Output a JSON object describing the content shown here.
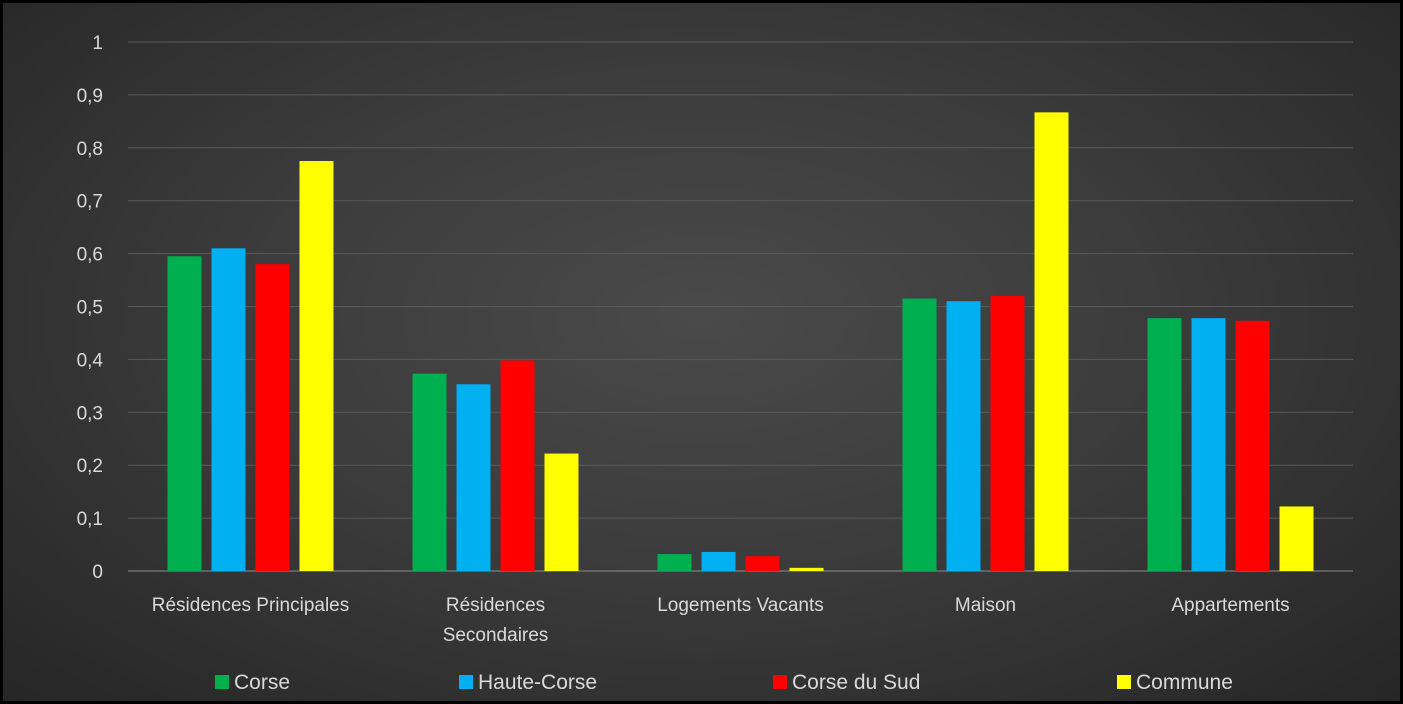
{
  "chart_data": {
    "type": "bar",
    "title": "",
    "xlabel": "",
    "ylabel": "",
    "ylim": [
      0,
      1
    ],
    "y_ticks": [
      "0",
      "0,1",
      "0,2",
      "0,3",
      "0,4",
      "0,5",
      "0,6",
      "0,7",
      "0,8",
      "0,9",
      "1"
    ],
    "grid": true,
    "legend_position": "bottom",
    "categories": [
      [
        "Résidences Principales"
      ],
      [
        "Résidences",
        "Secondaires"
      ],
      [
        "Logements Vacants"
      ],
      [
        "Maison"
      ],
      [
        "Appartements"
      ]
    ],
    "series": [
      {
        "name": "Corse",
        "color": "#00b050",
        "values": [
          0.595,
          0.373,
          0.032,
          0.515,
          0.478
        ]
      },
      {
        "name": "Haute-Corse",
        "color": "#00b0f0",
        "values": [
          0.61,
          0.353,
          0.036,
          0.51,
          0.478
        ]
      },
      {
        "name": "Corse du Sud",
        "color": "#ff0000",
        "values": [
          0.58,
          0.398,
          0.028,
          0.52,
          0.473
        ]
      },
      {
        "name": "Commune",
        "color": "#ffff00",
        "values": [
          0.775,
          0.222,
          0.006,
          0.867,
          0.122
        ]
      }
    ]
  }
}
